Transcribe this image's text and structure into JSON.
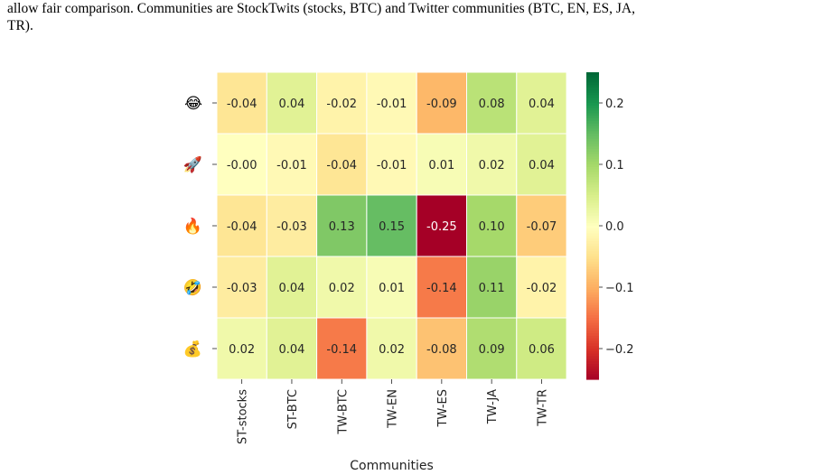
{
  "caption": {
    "line1": "allow fair comparison.  Communities are StockTwits (stocks, BTC) and Twitter communities (BTC, EN, ES, JA,",
    "line2": "TR)."
  },
  "chart_data": {
    "type": "heatmap",
    "title": "",
    "xlabel": "Communities",
    "ylabel": "",
    "columns": [
      "ST-stocks",
      "ST-BTC",
      "TW-BTC",
      "TW-EN",
      "TW-ES",
      "TW-JA",
      "TW-TR"
    ],
    "rows": [
      {
        "name": "face-with-tears-of-joy",
        "glyph": "😂",
        "values": [
          -0.04,
          0.04,
          -0.02,
          -0.01,
          -0.09,
          0.08,
          0.04
        ]
      },
      {
        "name": "rocket",
        "glyph": "🚀",
        "values": [
          -0.0,
          -0.01,
          -0.04,
          -0.01,
          0.01,
          0.02,
          0.04
        ]
      },
      {
        "name": "fire",
        "glyph": "🔥",
        "values": [
          -0.04,
          -0.03,
          0.13,
          0.15,
          -0.25,
          0.1,
          -0.07
        ]
      },
      {
        "name": "rolling-on-floor-laughing",
        "glyph": "🤣",
        "values": [
          -0.03,
          0.04,
          0.02,
          0.01,
          -0.14,
          0.11,
          -0.02
        ]
      },
      {
        "name": "money-bag",
        "glyph": "💰",
        "values": [
          0.02,
          0.04,
          -0.14,
          0.02,
          -0.08,
          0.09,
          0.06
        ]
      }
    ],
    "colormap": "RdYlGn",
    "vmin": -0.25,
    "vmax": 0.25,
    "colorbar_ticks": [
      "0.2",
      "0.1",
      "0.0",
      "−0.1",
      "−0.2"
    ],
    "colorbar_tick_values": [
      0.2,
      0.1,
      0.0,
      -0.1,
      -0.2
    ],
    "grid_lines": "white"
  }
}
